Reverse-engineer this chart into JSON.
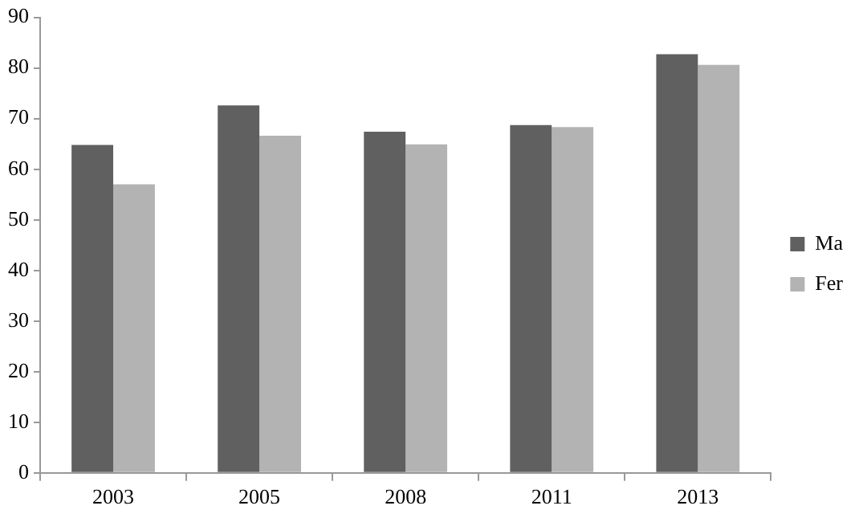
{
  "chart_data": {
    "type": "bar",
    "categories": [
      "2003",
      "2005",
      "2008",
      "2011",
      "2013"
    ],
    "series": [
      {
        "name": "Ma",
        "color": "#606060",
        "values": [
          64.8,
          72.6,
          67.4,
          68.7,
          82.7
        ]
      },
      {
        "name": "Fer",
        "color": "#b3b3b3",
        "values": [
          57.0,
          66.6,
          64.9,
          68.3,
          80.6
        ]
      }
    ],
    "ylim": [
      0,
      90
    ],
    "yticks": [
      0,
      10,
      20,
      30,
      40,
      50,
      60,
      70,
      80,
      90
    ],
    "grid": false,
    "legend": "right"
  }
}
